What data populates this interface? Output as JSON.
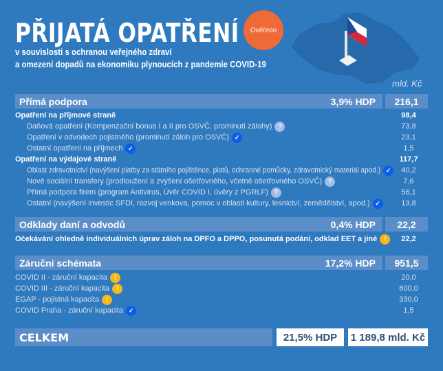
{
  "header": {
    "title": "PŘIJATÁ OPATŘENÍ",
    "badge": "Ověřeno",
    "subtitle_1": "v souvislosti s ochranou veřejného zdraví",
    "subtitle_2": "a omezení dopadů na ekonomiku plynoucích z pandemie COVID-19",
    "unit": "mld. Kč"
  },
  "colors": {
    "background": "#2f79bf",
    "bar": "#5b8ec8",
    "badge": "#ef6a37",
    "check": "#0b5ce8",
    "warning": "#f7b71b",
    "question": "#a4bde6"
  },
  "sections": [
    {
      "title": "Přímá podpora",
      "hdp": "3,9% HDP",
      "value": "216,1",
      "rows": [
        {
          "label": "Opatření na příjmové straně",
          "value": "98,4",
          "bold": true,
          "icon": ""
        },
        {
          "label": "Daňová opatření (Kompenzační bonus I a II pro OSVČ, prominutí zálohy)",
          "value": "73,8",
          "icon": "question-icon"
        },
        {
          "label": "Opatření v odvodech pojistného (prominutí záloh pro OSVČ)",
          "value": "23,1",
          "icon": "check-icon"
        },
        {
          "label": "Ostatní opatření na příjmech",
          "value": "1,5",
          "icon": "check-icon"
        },
        {
          "label": "Opatření na výdajové straně",
          "value": "117,7",
          "bold": true,
          "icon": ""
        },
        {
          "label": "Oblast zdravotnictví (navýšení platby za státního pojištěnce, platů, ochranné pomůcky, zdravotnický materiál apod.)",
          "value": "40,2",
          "icon": "check-icon"
        },
        {
          "label": "Nové sociální transfery (prodloužení a zvýšení ošetřovného, včetně ošetřovného OSVČ)",
          "value": "7,6",
          "icon": "question-icon"
        },
        {
          "label": "Přímá podpora firem (program Antivirus, Úvěr COVID I, úvěry z PGRLF)",
          "value": "56,1",
          "icon": "question-icon"
        },
        {
          "label": "Ostatní (navýšení investic SFDI, rozvoj venkova, pomoc v oblasti kultury, lesnictví, zemědělství, apod.)",
          "value": "13,8",
          "icon": "check-icon"
        }
      ]
    },
    {
      "title": "Odklady daní a odvodů",
      "hdp": "0,4% HDP",
      "value": "22,2",
      "rows": [
        {
          "label": "Očekávání ohledně individuálních úprav záloh na DPFO a DPPO, posunutá podání, odklad EET a jiné",
          "value": "22,2",
          "bold": true,
          "icon": "warning-icon"
        }
      ]
    },
    {
      "title": "Záruční schémata",
      "hdp": "17,2% HDP",
      "value": "951,5",
      "rows": [
        {
          "label": "COVID II - záruční kapacita",
          "value": "20,0",
          "icon": "warning-icon"
        },
        {
          "label": "COVID III - záruční kapacita",
          "value": "600,0",
          "icon": "warning-icon"
        },
        {
          "label": "EGAP - pojistná kapacita",
          "value": "330,0",
          "icon": "warning-icon"
        },
        {
          "label": "COVID Praha - záruční kapacita",
          "value": "1,5",
          "icon": "check-icon"
        }
      ]
    }
  ],
  "total": {
    "label": "CELKEM",
    "hdp": "21,5% HDP",
    "value": "1 189,8 mld. Kč"
  }
}
